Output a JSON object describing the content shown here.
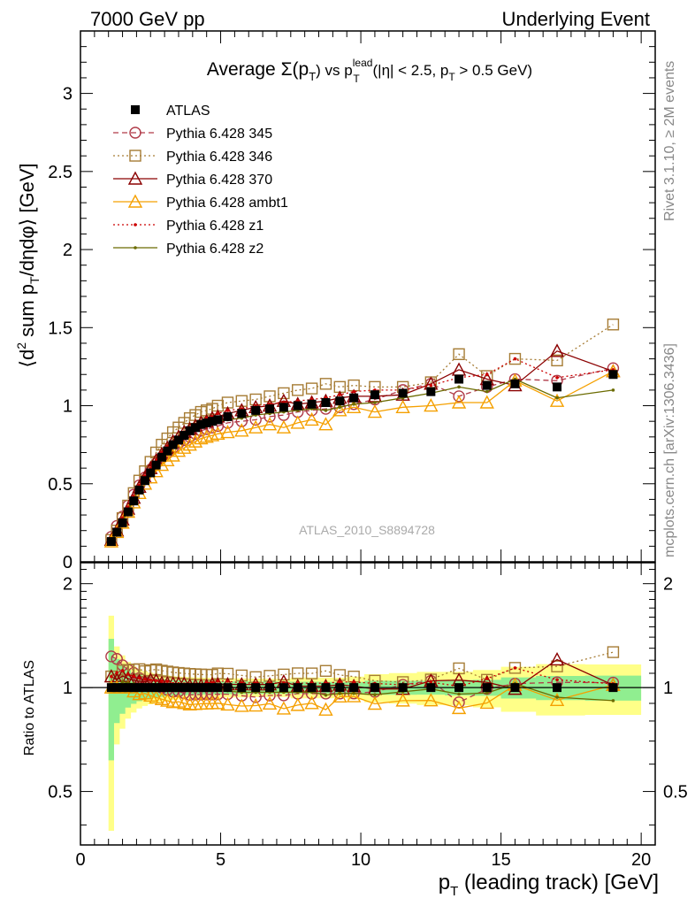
{
  "header": {
    "left": "7000 GeV pp",
    "right": "Underlying Event"
  },
  "side_labels": {
    "rivet": "Rivet 3.1.10, ≥ 2M events",
    "mcplots": "mcplots.cern.ch [arXiv:1306.3436]"
  },
  "title": {
    "main": "Average Σ(p",
    "main_sub": "T",
    "vs": ") vs p",
    "sup": "lead",
    "sub2": "T",
    "cut": " (|η| < 2.5, p",
    "sub3": "T",
    "cut_end": " > 0.5 GeV)"
  },
  "analysis_id": "ATLAS_2010_S8894728",
  "main_ylabel": {
    "part1": "⟨d",
    "sup1": "2",
    "part2": " sum p",
    "sub1": "T",
    "part3": "/dηdφ⟩ [GeV]"
  },
  "ratio_ylabel": "Ratio to ATLAS",
  "xlabel": {
    "part1": "p",
    "sub": "T",
    "part2": " (leading track) [GeV]"
  },
  "colors": {
    "ATLAS": "#000000",
    "p345": "#b03a48",
    "p346": "#a67c35",
    "p370": "#8b0000",
    "ambt1": "#f5a000",
    "z1": "#cc0000",
    "z2": "#6b6b00",
    "band_inner": "#90ee90",
    "band_outer": "#ffff88"
  },
  "chart_data": {
    "type": "line",
    "xlabel": "p_T (leading track) [GeV]",
    "ylabel": "⟨d² sum p_T/dηdφ⟩ [GeV]",
    "xlim": [
      0,
      20.5
    ],
    "ylim": [
      0,
      3.4
    ],
    "ratio_ylim": [
      0.35,
      2.3
    ],
    "x_ticks": [
      0,
      5,
      10,
      15,
      20
    ],
    "y_ticks": [
      0,
      0.5,
      1,
      1.5,
      2,
      2.5,
      3
    ],
    "ratio_ticks": [
      0.5,
      1,
      2
    ],
    "legend_position": "top-left",
    "x": [
      1.1,
      1.3,
      1.5,
      1.7,
      1.9,
      2.1,
      2.3,
      2.5,
      2.7,
      2.9,
      3.1,
      3.3,
      3.5,
      3.7,
      3.9,
      4.1,
      4.3,
      4.5,
      4.7,
      4.9,
      5.25,
      5.75,
      6.25,
      6.75,
      7.25,
      7.75,
      8.25,
      8.75,
      9.25,
      9.75,
      10.5,
      11.5,
      12.5,
      13.5,
      14.5,
      15.5,
      17.0,
      19.0
    ],
    "series": [
      {
        "name": "ATLAS",
        "style": "data",
        "color": "#000000",
        "values": [
          0.13,
          0.19,
          0.25,
          0.32,
          0.39,
          0.46,
          0.52,
          0.57,
          0.62,
          0.67,
          0.71,
          0.75,
          0.78,
          0.81,
          0.84,
          0.86,
          0.88,
          0.89,
          0.9,
          0.91,
          0.93,
          0.95,
          0.97,
          0.98,
          0.99,
          1.0,
          1.01,
          1.02,
          1.03,
          1.05,
          1.07,
          1.08,
          1.09,
          1.17,
          1.13,
          1.14,
          1.12,
          1.2
        ],
        "band_inner": [
          0.05,
          0.04,
          0.04,
          0.04,
          0.04,
          0.04,
          0.04,
          0.04,
          0.04,
          0.04,
          0.04,
          0.04,
          0.04,
          0.04,
          0.04,
          0.04,
          0.04,
          0.04,
          0.04,
          0.04,
          0.04,
          0.04,
          0.04,
          0.04,
          0.04,
          0.04,
          0.04,
          0.04,
          0.04,
          0.04,
          0.05,
          0.05,
          0.05,
          0.06,
          0.06,
          0.08,
          0.09,
          0.1
        ],
        "band_outer": [
          0.08,
          0.06,
          0.06,
          0.06,
          0.06,
          0.06,
          0.06,
          0.06,
          0.06,
          0.06,
          0.06,
          0.06,
          0.06,
          0.06,
          0.06,
          0.06,
          0.06,
          0.06,
          0.06,
          0.06,
          0.06,
          0.06,
          0.06,
          0.06,
          0.06,
          0.07,
          0.07,
          0.07,
          0.07,
          0.08,
          0.1,
          0.11,
          0.12,
          0.13,
          0.14,
          0.17,
          0.19,
          0.2
        ]
      },
      {
        "name": "Pythia 6.428 345",
        "style": "circle-dashed",
        "color": "#b03a48",
        "values": [
          0.16,
          0.23,
          0.29,
          0.36,
          0.43,
          0.49,
          0.54,
          0.59,
          0.63,
          0.67,
          0.7,
          0.73,
          0.76,
          0.78,
          0.8,
          0.82,
          0.84,
          0.85,
          0.86,
          0.87,
          0.89,
          0.9,
          0.91,
          0.93,
          0.94,
          0.96,
          0.97,
          0.98,
          0.99,
          1.01,
          1.04,
          1.1,
          1.14,
          1.06,
          1.12,
          1.17,
          1.16,
          1.24
        ]
      },
      {
        "name": "Pythia 6.428 346",
        "style": "square-dotted",
        "color": "#a67c35",
        "values": [
          0.14,
          0.2,
          0.28,
          0.36,
          0.44,
          0.52,
          0.58,
          0.64,
          0.7,
          0.75,
          0.79,
          0.83,
          0.86,
          0.89,
          0.92,
          0.94,
          0.96,
          0.97,
          0.98,
          1.0,
          1.02,
          1.03,
          1.04,
          1.06,
          1.08,
          1.1,
          1.11,
          1.14,
          1.12,
          1.13,
          1.12,
          1.12,
          1.15,
          1.33,
          1.19,
          1.3,
          1.29,
          1.52
        ]
      },
      {
        "name": "Pythia 6.428 370",
        "style": "triangle-solid",
        "color": "#8b0000",
        "values": [
          0.14,
          0.2,
          0.27,
          0.34,
          0.41,
          0.48,
          0.54,
          0.6,
          0.65,
          0.69,
          0.73,
          0.77,
          0.8,
          0.83,
          0.85,
          0.87,
          0.89,
          0.9,
          0.92,
          0.93,
          0.95,
          0.97,
          0.99,
          1.0,
          1.03,
          1.01,
          1.02,
          1.03,
          1.05,
          1.06,
          1.06,
          1.07,
          1.14,
          1.23,
          1.17,
          1.13,
          1.35,
          1.22
        ]
      },
      {
        "name": "Pythia 6.428 ambt1",
        "style": "triangle-solid",
        "color": "#f5a000",
        "values": [
          0.13,
          0.19,
          0.25,
          0.32,
          0.38,
          0.44,
          0.5,
          0.54,
          0.58,
          0.62,
          0.65,
          0.68,
          0.71,
          0.73,
          0.75,
          0.77,
          0.79,
          0.8,
          0.81,
          0.82,
          0.83,
          0.84,
          0.86,
          0.88,
          0.86,
          0.89,
          0.91,
          0.88,
          0.97,
          0.99,
          0.96,
          0.99,
          1.0,
          1.02,
          1.02,
          1.16,
          1.03,
          1.22
        ]
      },
      {
        "name": "Pythia 6.428 z1",
        "style": "dot-dotted",
        "color": "#cc0000",
        "values": [
          0.14,
          0.21,
          0.28,
          0.35,
          0.42,
          0.49,
          0.55,
          0.6,
          0.65,
          0.7,
          0.74,
          0.77,
          0.8,
          0.83,
          0.86,
          0.88,
          0.9,
          0.92,
          0.93,
          0.95,
          0.97,
          0.98,
          1.0,
          1.01,
          1.02,
          1.03,
          1.04,
          1.05,
          1.07,
          1.09,
          1.1,
          1.1,
          1.13,
          1.18,
          1.2,
          1.3,
          1.18,
          1.23
        ]
      },
      {
        "name": "Pythia 6.428 z2",
        "style": "dot-solid",
        "color": "#6b6b00",
        "values": [
          0.13,
          0.19,
          0.26,
          0.33,
          0.4,
          0.47,
          0.53,
          0.58,
          0.63,
          0.67,
          0.71,
          0.75,
          0.78,
          0.81,
          0.83,
          0.85,
          0.87,
          0.88,
          0.89,
          0.9,
          0.91,
          0.92,
          0.94,
          0.95,
          0.96,
          0.97,
          0.98,
          0.97,
          0.99,
          1.01,
          1.02,
          1.05,
          1.08,
          1.12,
          1.09,
          1.17,
          1.05,
          1.1
        ]
      }
    ]
  }
}
